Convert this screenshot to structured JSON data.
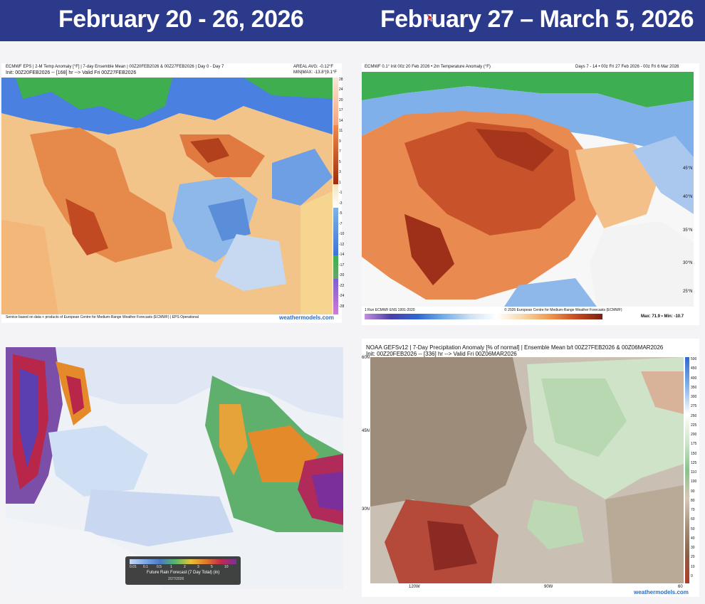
{
  "header": {
    "left_title": "February 20 - 26, 2026",
    "right_title": "February 27 – March 5, 2026",
    "bg_color": "#2b3a8a"
  },
  "panel_tl": {
    "title_line1": "ECMWF EPS | 2-M Temp Anomaly [°F] | 7-day Ensemble Mean | 00Z20FEB2026 & 00Z27FEB2026 | Day 0 - Day 7",
    "title_line2": "Init: 00Z20FEB2026 -- [168] hr --> Valid Fri 00Z27FEB2026",
    "stats_line1": "AREAL AVG: -0.12°F",
    "stats_line2": "MIN|MAX: -13.8°|9.1°F",
    "footer": "Service based on data + products of European Centre for Medium-Range Weather Forecasts (ECMWF) | EPS Operational",
    "credit": "weathermodels.com",
    "scale_ticks": [
      "28",
      "24",
      "20",
      "17",
      "14",
      "11",
      "9",
      "7",
      "5",
      "3",
      "1",
      "-1",
      "-3",
      "-5",
      "-7",
      "-10",
      "-12",
      "-14",
      "-17",
      "-20",
      "-22",
      "-24",
      "-28"
    ]
  },
  "panel_tr": {
    "title": "ECMWF 0.1° Init 00z 20 Feb 2026 • 2m Temperature Anomaly (°F)",
    "right_title": "Days 7 - 14 • 00z Fri 27 Feb 2026 - 00z Fri 6 Mar 2026",
    "lat_labels": [
      "45°N",
      "40°N",
      "35°N",
      "30°N",
      "25°N"
    ],
    "footer_left": "1 Run ECMWF ENS 1991-2020",
    "footer_mid": "© 2026 European Centre for Medium-Range Weather Forecasts (ECMWF)",
    "stats": "Max: 71.9 • Min: -10.7"
  },
  "panel_bl": {
    "legend_title": "Future Rain Forecast (7 Day Total) (in)",
    "legend_date": "2/27/2026",
    "legend_ticks": [
      "0.01",
      "0.1",
      "0.5",
      "1",
      "2",
      "3",
      "5",
      "10"
    ]
  },
  "panel_br": {
    "title_line1": "NOAA GEFSv12 | 7-Day Precipitation Anomaly [% of normal] | Ensemble Mean b/t 00Z27FEB2026 & 00Z06MAR2026",
    "title_line2": "Init: 00Z20FEB2026 -- [336] hr --> Valid Fri 00Z06MAR2026",
    "lat_labels": [
      "60N",
      "45N",
      "30N"
    ],
    "lon_labels": [
      "120W",
      "90W",
      "60"
    ],
    "credit": "weathermodels.com",
    "scale_ticks": [
      "500",
      "450",
      "400",
      "350",
      "300",
      "275",
      "250",
      "225",
      "200",
      "175",
      "150",
      "125",
      "110",
      "100",
      "90",
      "80",
      "70",
      "60",
      "50",
      "40",
      "30",
      "20",
      "10",
      "0"
    ]
  }
}
